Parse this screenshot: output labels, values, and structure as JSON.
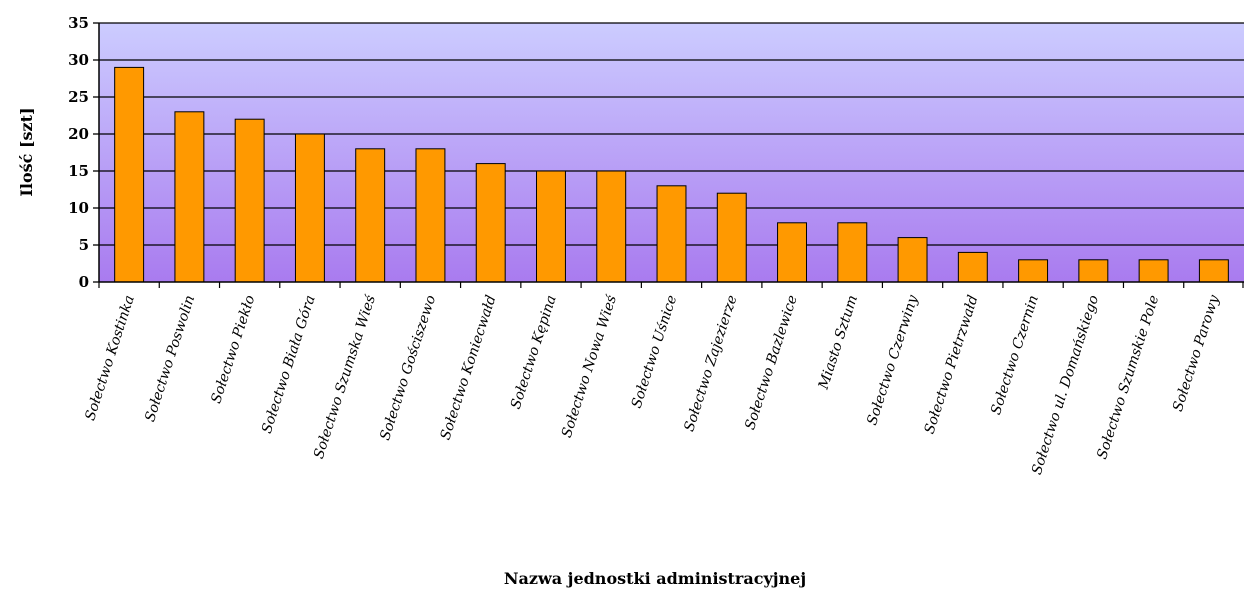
{
  "chart_data": {
    "type": "bar",
    "title": "",
    "xlabel": "Nazwa jednostki administracyjnej",
    "ylabel": "Ilość [szt]",
    "ylim": [
      0,
      35
    ],
    "yticks": [
      0,
      5,
      10,
      15,
      20,
      25,
      30,
      35
    ],
    "grid": true,
    "legend": "none",
    "categories": [
      "Sołectwo Kostinka",
      "Sołectwo Poswolin",
      "Sołectwo Piekło",
      "Sołectwo Biała Góra",
      "Sołectwo Szumska Wieś",
      "Sołectwo Gościszewo",
      "Sołectwo Koniecwałd",
      "Sołectwo Kępina",
      "Sołectwo Nowa Wieś",
      "Sołectwo Uśnice",
      "Sołectwo Zajezierze",
      "Sołectwo Bazlewice",
      "Miasto Sztum",
      "Sołectwo Czerwiny",
      "Sołectwo Pietrzwałd",
      "Sołectwo Czernin",
      "Sołectwo ul. Domańskiego",
      "Sołectwo Szumskie Pole",
      "Sołectwo Parowy"
    ],
    "values": [
      29,
      23,
      22,
      20,
      18,
      18,
      16,
      15,
      15,
      13,
      12,
      8,
      8,
      6,
      4,
      3,
      3,
      3,
      3
    ],
    "colors": {
      "bar_fill": "#FF9900",
      "bar_stroke": "#000000",
      "plot_bg_top": "#CCCCFF",
      "plot_bg_bottom": "#A97BEF",
      "gridline": "#000000"
    }
  }
}
